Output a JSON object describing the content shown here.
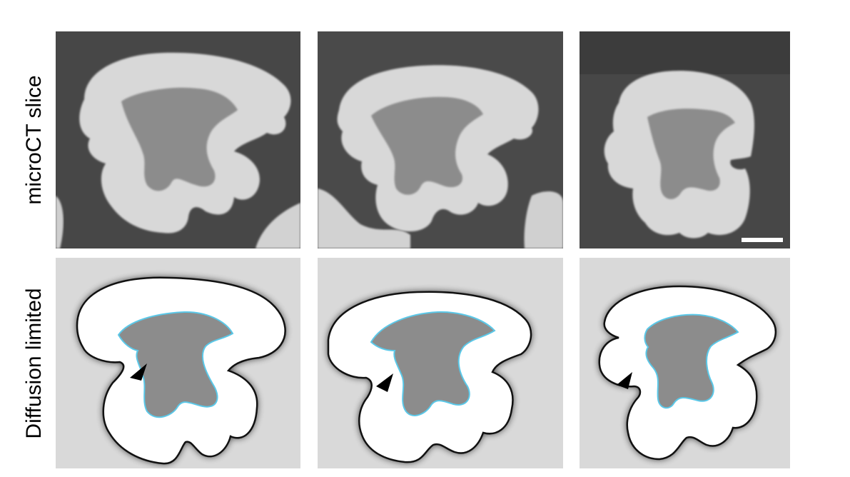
{
  "row_labels": {
    "top": "microCT slice",
    "bottom": "Diffusion limited"
  },
  "colors": {
    "ct_background": "#4a4a4a",
    "ct_outer_shell": "#d6d6d6",
    "ct_core": "#8e8e8e",
    "sim_background": "#d9d9d9",
    "sim_outer": "#ffffff",
    "sim_core": "#8c8c8c",
    "sim_interface": "#5bc8e8",
    "sim_edge": "#111111",
    "arrowhead": "#000000",
    "scale_bar": "#ffffff"
  },
  "icons": {
    "arrowhead": "arrowhead-icon",
    "scale_bar": "scale-bar"
  }
}
